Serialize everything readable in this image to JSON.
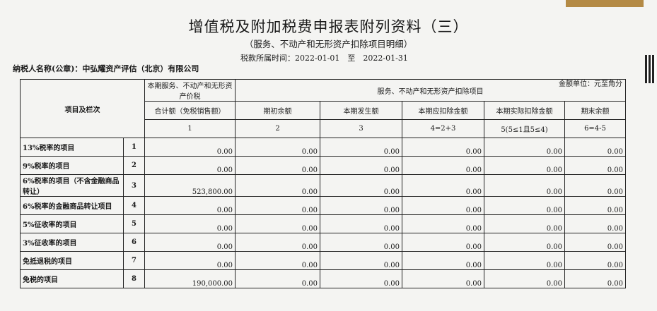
{
  "header": {
    "title": "增值税及附加税费申报表附列资料（三）",
    "subtitle": "（服务、不动产和无形资产扣除项目明细）",
    "period": "税款所属时间：2022-01-01　至　2022-01-31",
    "taxpayer": "纳税人名称(公章)：中弘耀资产评估（北京）有限公司",
    "unit": "金额单位：元至角分"
  },
  "table": {
    "col_item": "项目及栏次",
    "col1_top": "本期服务、不动产和无形资产价税",
    "col1_bottom": "合计额（免税销售额）",
    "group": "服务、不动产和无形资产扣除项目",
    "cols": [
      "期初余额",
      "本期发生额",
      "本期应扣除金额",
      "本期实际扣除金额",
      "期末余额"
    ],
    "col_nums": [
      "1",
      "2",
      "3",
      "4=2+3",
      "5(5≤1且5≤4)",
      "6=4-5"
    ],
    "rows": [
      {
        "label": "13%税率的项目",
        "no": "1",
        "v": [
          "0.00",
          "0.00",
          "0.00",
          "0.00",
          "0.00",
          "0.00"
        ]
      },
      {
        "label": "9%税率的项目",
        "no": "2",
        "v": [
          "0.00",
          "0.00",
          "0.00",
          "0.00",
          "0.00",
          "0.00"
        ]
      },
      {
        "label": "6%税率的项目（不含金融商品转让）",
        "no": "3",
        "v": [
          "523,800.00",
          "0.00",
          "0.00",
          "0.00",
          "0.00",
          "0.00"
        ]
      },
      {
        "label": "6%税率的金融商品转让项目",
        "no": "4",
        "v": [
          "0.00",
          "0.00",
          "0.00",
          "0.00",
          "0.00",
          "0.00"
        ]
      },
      {
        "label": "5%征收率的项目",
        "no": "5",
        "v": [
          "0.00",
          "0.00",
          "0.00",
          "0.00",
          "0.00",
          "0.00"
        ]
      },
      {
        "label": "3%征收率的项目",
        "no": "6",
        "v": [
          "0.00",
          "0.00",
          "0.00",
          "0.00",
          "0.00",
          "0.00"
        ]
      },
      {
        "label": "免抵退税的项目",
        "no": "7",
        "v": [
          "0.00",
          "0.00",
          "0.00",
          "0.00",
          "0.00",
          "0.00"
        ]
      },
      {
        "label": "免税的项目",
        "no": "8",
        "v": [
          "190,000.00",
          "0.00",
          "0.00",
          "0.00",
          "0.00",
          "0.00"
        ]
      }
    ]
  }
}
